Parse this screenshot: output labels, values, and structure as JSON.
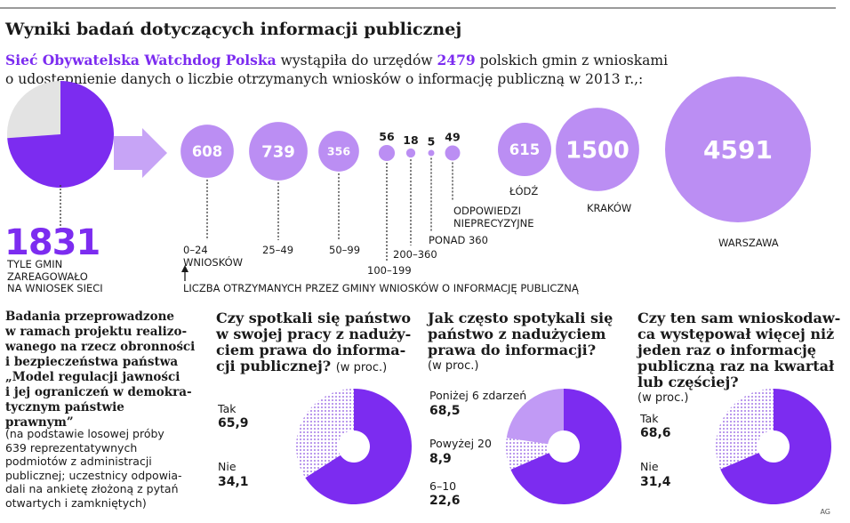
{
  "title": "Wyniki badań dotyczących informacji publicznej",
  "intro": {
    "org": "Sieć Obywatelska Watchdog Polska",
    "part1": " wystąpiła do urzędów ",
    "count": "2479",
    "part2": " polskich gmin z wnioskami",
    "line2": "o udostępnienie danych o liczbie otrzymanych wniosków o informację publiczną w 2013 r.,:"
  },
  "response": {
    "value": "1831",
    "caption": [
      "TYLE GMIN",
      "ZAREAGOWAŁO",
      "NA WNIOSEK SIECI"
    ]
  },
  "axis_note": "LICZBA OTRZYMANYCH PRZEZ GMINY WNIOSKÓW O INFORMACJĘ PUBLICZNĄ",
  "colors": {
    "purple": "#7c2cf0",
    "light_purple": "#c19af5",
    "circle": "#bb8ef3",
    "grey": "#e3e3e3"
  },
  "chart_data": [
    {
      "type": "pie",
      "title": "",
      "values": [
        1831,
        648
      ],
      "labels": [
        "1831",
        ""
      ]
    },
    {
      "type": "bubble",
      "categories": [
        "0–24 WNIOSKÓW",
        "25–49",
        "50–99",
        "100–199",
        "200–360",
        "PONAD 360",
        "ODPOWIEDZI NIEPRECYZYJNE",
        "ŁÓDŹ",
        "KRAKÓW",
        "WARSZAWA"
      ],
      "values": [
        608,
        739,
        356,
        56,
        18,
        5,
        49,
        615,
        1500,
        4591
      ]
    },
    {
      "type": "pie",
      "donut": true,
      "title": "Czy spotkali się państwo w swojej pracy z nadużyciem prawa do informacji publicznej?",
      "unit": "(w proc.)",
      "categories": [
        "Tak",
        "Nie"
      ],
      "values": [
        65.9,
        34.1
      ]
    },
    {
      "type": "pie",
      "donut": true,
      "title": "Jak często spotykali się państwo z nadużyciem prawa do informacji?",
      "unit": "(w proc.)",
      "categories": [
        "Poniżej 6 zdarzeń",
        "Powyżej 20",
        "6–10"
      ],
      "values": [
        68.5,
        8.9,
        22.6
      ]
    },
    {
      "type": "pie",
      "donut": true,
      "title": "Czy ten sam wnioskodawca występował więcej niż jeden raz o informację publiczną raz na kwartał lub częściej?",
      "unit": "(w proc.)",
      "categories": [
        "Tak",
        "Nie"
      ],
      "values": [
        68.6,
        31.4
      ]
    }
  ],
  "bubbles": [
    {
      "label": "608",
      "cat": "0–24",
      "cat2": "WNIOSKÓW"
    },
    {
      "label": "739",
      "cat": "25–49"
    },
    {
      "label": "356",
      "cat": "50–99"
    },
    {
      "label": "56",
      "cat": "100–199"
    },
    {
      "label": "18",
      "cat": "200–360"
    },
    {
      "label": "5",
      "cat": "PONAD 360"
    },
    {
      "label": "49",
      "cat": "ODPOWIEDZI",
      "cat2": "NIEPRECYZYJNE"
    },
    {
      "label": "615",
      "cat": "ŁÓDŹ"
    },
    {
      "label": "1500",
      "cat": "KRAKÓW"
    },
    {
      "label": "4591",
      "cat": "WARSZAWA"
    }
  ],
  "survey": {
    "desc_bold": [
      "Badania przeprowadzone",
      "w ramach projektu realizo-",
      "wanego na rzecz obronności",
      "i bezpieczeństwa państwa",
      "„Model regulacji jawności",
      "i jej ograniczeń w demokra-",
      "tycznym państwie prawnym”"
    ],
    "desc_norm": [
      "(na podstawie losowej próby",
      "639 reprezentatywnych",
      "podmiotów z administracji",
      "publicznej; uczestnicy odpowia-",
      "dali na ankietę złożoną z pytań",
      "otwartych i zamkniętych)"
    ]
  },
  "q1": {
    "title_lines": [
      "Czy spotkali się państwo",
      "w swojej pracy z naduży-",
      "ciem prawa do informa-",
      "cji publicznej?"
    ],
    "unit": "(w proc.)",
    "items": [
      {
        "label": "Tak",
        "value": "65,9"
      },
      {
        "label": "Nie",
        "value": "34,1"
      }
    ]
  },
  "q2": {
    "title_lines": [
      "Jak często spotykali się",
      "państwo z nadużyciem",
      "prawa do informacji?"
    ],
    "unit": "(w proc.)",
    "items": [
      {
        "label": "Poniżej 6 zdarzeń",
        "value": "68,5"
      },
      {
        "label": "Powyżej 20",
        "value": "8,9"
      },
      {
        "label": "6–10",
        "value": "22,6"
      }
    ]
  },
  "q3": {
    "title_lines": [
      "Czy ten sam wnioskodaw-",
      "ca występował więcej niż",
      "jeden raz o informację",
      "publiczną raz na kwartał",
      "lub częściej?"
    ],
    "unit": "(w proc.)",
    "items": [
      {
        "label": "Tak",
        "value": "68,6"
      },
      {
        "label": "Nie",
        "value": "31,4"
      }
    ]
  },
  "credit": "AG"
}
